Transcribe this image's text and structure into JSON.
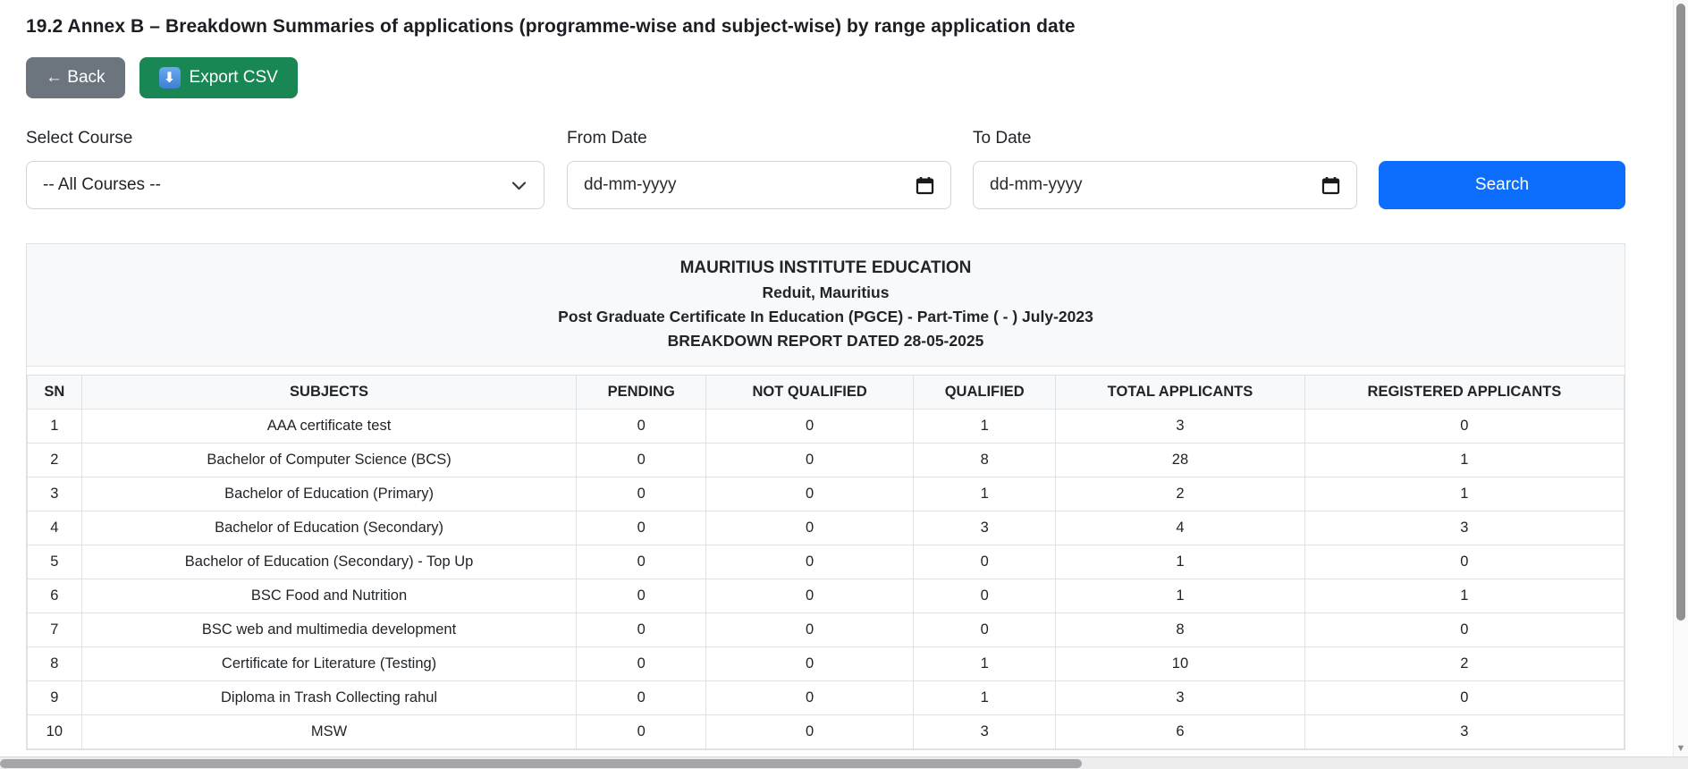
{
  "page": {
    "title": "19.2 Annex B – Breakdown Summaries of applications (programme-wise and subject-wise) by range application date"
  },
  "toolbar": {
    "back_label": "← Back",
    "export_csv_label": "Export CSV",
    "export_icon_glyph": "⬇"
  },
  "filters": {
    "course": {
      "label": "Select Course",
      "selected": "-- All Courses --"
    },
    "from_date": {
      "label": "From Date",
      "placeholder": "dd-mm-yyyy"
    },
    "to_date": {
      "label": "To Date",
      "placeholder": "dd-mm-yyyy"
    },
    "search_label": "Search"
  },
  "report_header": {
    "institution": "MAURITIUS INSTITUTE EDUCATION",
    "location": "Reduit, Mauritius",
    "programme": "Post Graduate Certificate In Education (PGCE) - Part-Time ( - ) July-2023",
    "report_title": "BREAKDOWN REPORT DATED 28-05-2025"
  },
  "table": {
    "columns": [
      "SN",
      "SUBJECTS",
      "PENDING",
      "NOT QUALIFIED",
      "QUALIFIED",
      "TOTAL APPLICANTS",
      "REGISTERED APPLICANTS"
    ],
    "rows": [
      [
        "1",
        "AAA certificate test",
        "0",
        "0",
        "1",
        "3",
        "0"
      ],
      [
        "2",
        "Bachelor of Computer Science (BCS)",
        "0",
        "0",
        "8",
        "28",
        "1"
      ],
      [
        "3",
        "Bachelor of Education (Primary)",
        "0",
        "0",
        "1",
        "2",
        "1"
      ],
      [
        "4",
        "Bachelor of Education (Secondary)",
        "0",
        "0",
        "3",
        "4",
        "3"
      ],
      [
        "5",
        "Bachelor of Education (Secondary) - Top Up",
        "0",
        "0",
        "0",
        "1",
        "0"
      ],
      [
        "6",
        "BSC Food and Nutrition",
        "0",
        "0",
        "0",
        "1",
        "1"
      ],
      [
        "7",
        "BSC web and multimedia development",
        "0",
        "0",
        "0",
        "8",
        "0"
      ],
      [
        "8",
        "Certificate for Literature (Testing)",
        "0",
        "0",
        "1",
        "10",
        "2"
      ],
      [
        "9",
        "Diploma in Trash Collecting rahul",
        "0",
        "0",
        "1",
        "3",
        "0"
      ],
      [
        "10",
        "MSW",
        "0",
        "0",
        "3",
        "6",
        "3"
      ]
    ]
  },
  "colors": {
    "back_button": "#6c757d",
    "export_button": "#198754",
    "search_button": "#0d6efd",
    "table_header_bg": "#f8f9fa",
    "table_border": "#dee2e6"
  }
}
